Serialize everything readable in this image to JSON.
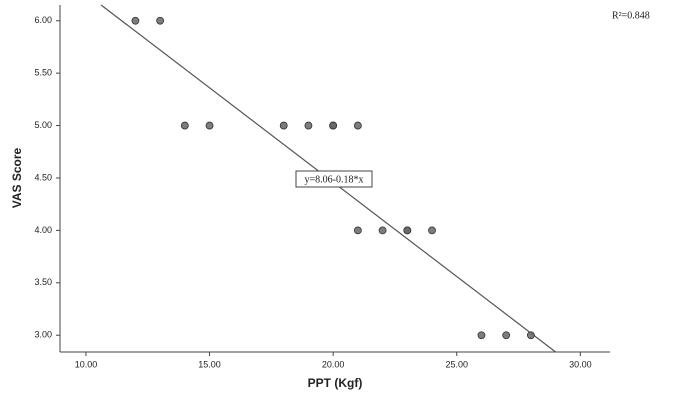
{
  "chart_data": {
    "type": "scatter",
    "x_label": "PPT (Kgf)",
    "y_label": "VAS Score",
    "annotation": "R²=0.848",
    "fit_label": "y=8.06-0.18*x",
    "fit": {
      "intercept": 8.06,
      "slope": -0.18
    },
    "x": [
      12,
      13,
      14,
      15,
      18,
      19,
      20,
      20,
      21,
      21,
      22,
      23,
      23,
      24,
      26,
      27,
      28
    ],
    "values": [
      6,
      6,
      5,
      5,
      5,
      5,
      5,
      5,
      5,
      4,
      4,
      4,
      4,
      4,
      3,
      3,
      3
    ],
    "color": "#666666",
    "line_color": "#555555",
    "xlim": [
      8.95,
      31.2
    ],
    "ylim": [
      2.84,
      6.15
    ],
    "xticks": [
      {
        "value": 10,
        "label": "10.00"
      },
      {
        "value": 15,
        "label": "15.00"
      },
      {
        "value": 20,
        "label": "20.00"
      },
      {
        "value": 25,
        "label": "25.00"
      },
      {
        "value": 30,
        "label": "30.00"
      }
    ],
    "yticks": [
      {
        "value": 3,
        "label": "3.00"
      },
      {
        "value": 3.5,
        "label": "3.50"
      },
      {
        "value": 4,
        "label": "4.00"
      },
      {
        "value": 4.5,
        "label": "4.50"
      },
      {
        "value": 5,
        "label": "5.00"
      },
      {
        "value": 5.5,
        "label": "5.50"
      },
      {
        "value": 6,
        "label": "6.00"
      }
    ]
  }
}
